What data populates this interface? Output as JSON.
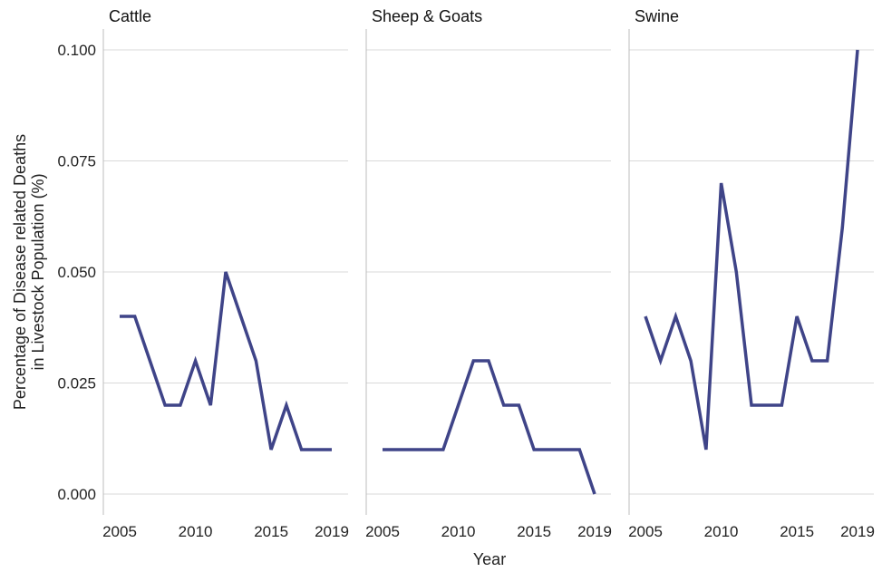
{
  "chart_data": {
    "type": "line",
    "facet_layout": "three panels in one row, shared y-axis",
    "xlabel": "Year",
    "ylabel_lines": [
      "Percentage of Disease related Deaths",
      "in Livestock Population (%)"
    ],
    "xlim": [
      2005,
      2019
    ],
    "ylim": [
      0,
      0.1
    ],
    "x_ticks": [
      2005,
      2010,
      2015,
      2019
    ],
    "y_ticks": [
      {
        "value": 0,
        "label": "0.000"
      },
      {
        "value": 0.025,
        "label": "0.025"
      },
      {
        "value": 0.05,
        "label": "0.050"
      },
      {
        "value": 0.075,
        "label": "0.075"
      },
      {
        "value": 0.1,
        "label": "0.100"
      }
    ],
    "grid": "horizontal major",
    "line_color": "#3f4488",
    "x": [
      2005,
      2006,
      2007,
      2008,
      2009,
      2010,
      2011,
      2012,
      2013,
      2014,
      2015,
      2016,
      2017,
      2018,
      2019
    ],
    "panels": [
      {
        "title": "Cattle",
        "values": [
          0.04,
          0.04,
          0.03,
          0.02,
          0.02,
          0.03,
          0.02,
          0.05,
          0.04,
          0.03,
          0.01,
          0.02,
          0.01,
          0.01,
          0.01
        ]
      },
      {
        "title": "Sheep & Goats",
        "values": [
          0.01,
          0.01,
          0.01,
          0.01,
          0.01,
          0.02,
          0.03,
          0.03,
          0.02,
          0.02,
          0.01,
          0.01,
          0.01,
          0.01,
          0.0
        ]
      },
      {
        "title": "Swine",
        "values": [
          0.04,
          0.03,
          0.04,
          0.03,
          0.01,
          0.07,
          0.05,
          0.02,
          0.02,
          0.02,
          0.04,
          0.03,
          0.03,
          0.06,
          0.1
        ]
      }
    ]
  }
}
